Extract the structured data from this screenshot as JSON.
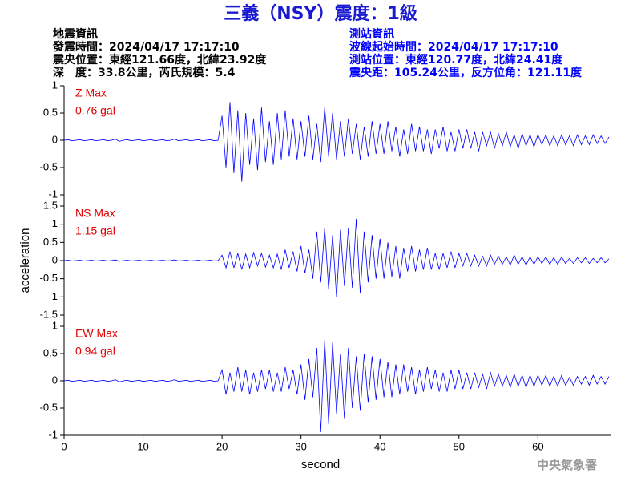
{
  "header": {
    "title": "三義（NSY）震度：1級",
    "event_info": [
      "地震資訊",
      "發震時間：2024/04/17 17:17:10",
      "震央位置：東經121.66度，北緯23.92度",
      "深　度：33.8公里，芮氏規模：5.4"
    ],
    "station_info": [
      "測站資訊",
      "波線起始時間：2024/04/17 17:17:10",
      "測站位置：東經120.77度，北緯24.41度",
      "震央距：105.24公里，反方位角：121.11度"
    ]
  },
  "footer": "中央氣象署",
  "chart_data": [
    {
      "type": "line",
      "annotation": [
        "Z Max",
        "0.76 gal"
      ],
      "color": "#0000ff",
      "xlim": [
        0,
        69.2
      ],
      "ylim": [
        -1,
        1
      ],
      "yticks": [
        1,
        0.5,
        0,
        -0.5,
        -1
      ],
      "x": [
        0,
        0.5,
        1,
        1.5,
        2,
        2.5,
        3,
        3.5,
        4,
        4.5,
        5,
        5.5,
        6,
        6.5,
        7,
        7.5,
        8,
        8.5,
        9,
        9.5,
        10,
        10.5,
        11,
        11.5,
        12,
        12.5,
        13,
        13.5,
        14,
        14.5,
        15,
        15.5,
        16,
        16.5,
        17,
        17.5,
        18,
        18.5,
        19,
        19.5,
        20,
        20.5,
        21,
        21.5,
        22,
        22.5,
        23,
        23.5,
        24,
        24.5,
        25,
        25.5,
        26,
        26.5,
        27,
        27.5,
        28,
        28.5,
        29,
        29.5,
        30,
        30.5,
        31,
        31.5,
        32,
        32.5,
        33,
        33.5,
        34,
        34.5,
        35,
        35.5,
        36,
        36.5,
        37,
        37.5,
        38,
        38.5,
        39,
        39.5,
        40,
        40.5,
        41,
        41.5,
        42,
        42.5,
        43,
        43.5,
        44,
        44.5,
        45,
        45.5,
        46,
        46.5,
        47,
        47.5,
        48,
        48.5,
        49,
        49.5,
        50,
        50.5,
        51,
        51.5,
        52,
        52.5,
        53,
        53.5,
        54,
        54.5,
        55,
        55.5,
        56,
        56.5,
        57,
        57.5,
        58,
        58.5,
        59,
        59.5,
        60,
        60.5,
        61,
        61.5,
        62,
        62.5,
        63,
        63.5,
        64,
        64.5,
        65,
        65.5,
        66,
        66.5,
        67,
        67.5,
        68,
        68.5,
        69
      ],
      "values": [
        0,
        0.01,
        -0.01,
        0,
        0.01,
        -0.01,
        0,
        0.01,
        -0.01,
        0,
        0.01,
        -0.01,
        0,
        0.02,
        -0.02,
        0,
        0.01,
        -0.01,
        0,
        0.01,
        -0.01,
        0,
        0.01,
        -0.01,
        0,
        0.01,
        -0.01,
        0,
        0.02,
        -0.01,
        0,
        0.01,
        -0.01,
        0,
        0.01,
        -0.01,
        0,
        0.01,
        -0.01,
        0,
        0.45,
        -0.5,
        0.7,
        -0.6,
        0.55,
        -0.76,
        0.5,
        -0.45,
        0.4,
        -0.55,
        0.6,
        -0.4,
        0.35,
        -0.45,
        0.5,
        -0.35,
        0.55,
        -0.3,
        0.4,
        -0.35,
        0.35,
        -0.3,
        0.45,
        -0.35,
        0.3,
        -0.4,
        0.6,
        -0.3,
        0.5,
        -0.35,
        0.35,
        -0.3,
        0.4,
        -0.25,
        0.3,
        -0.35,
        0.25,
        -0.3,
        0.35,
        -0.25,
        0.3,
        -0.25,
        0.35,
        -0.2,
        0.25,
        -0.3,
        0.2,
        -0.25,
        0.3,
        -0.2,
        0.25,
        -0.2,
        0.2,
        -0.25,
        0.2,
        -0.15,
        0.25,
        -0.2,
        0.15,
        -0.2,
        0.2,
        -0.15,
        0.2,
        -0.15,
        0.15,
        -0.2,
        0.15,
        -0.1,
        0.15,
        -0.15,
        0.12,
        -0.1,
        0.15,
        -0.12,
        0.1,
        -0.15,
        0.12,
        -0.1,
        0.1,
        -0.12,
        0.1,
        -0.08,
        0.1,
        -0.1,
        0.08,
        -0.1,
        0.1,
        -0.08,
        0.08,
        -0.1,
        0.1,
        -0.08,
        0.08,
        -0.08,
        0.1,
        -0.06,
        0.08,
        -0.06,
        0.06
      ]
    },
    {
      "type": "line",
      "annotation": [
        "NS Max",
        "1.15 gal"
      ],
      "color": "#0000ff",
      "ylabel": "acceleration",
      "xlim": [
        0,
        69.2
      ],
      "ylim": [
        -1.5,
        1.5
      ],
      "yticks": [
        1.5,
        1,
        0.5,
        0,
        -0.5,
        -1,
        -1.5
      ],
      "x": [
        0,
        0.5,
        1,
        1.5,
        2,
        2.5,
        3,
        3.5,
        4,
        4.5,
        5,
        5.5,
        6,
        6.5,
        7,
        7.5,
        8,
        8.5,
        9,
        9.5,
        10,
        10.5,
        11,
        11.5,
        12,
        12.5,
        13,
        13.5,
        14,
        14.5,
        15,
        15.5,
        16,
        16.5,
        17,
        17.5,
        18,
        18.5,
        19,
        19.5,
        20,
        20.5,
        21,
        21.5,
        22,
        22.5,
        23,
        23.5,
        24,
        24.5,
        25,
        25.5,
        26,
        26.5,
        27,
        27.5,
        28,
        28.5,
        29,
        29.5,
        30,
        30.5,
        31,
        31.5,
        32,
        32.5,
        33,
        33.5,
        34,
        34.5,
        35,
        35.5,
        36,
        36.5,
        37,
        37.5,
        38,
        38.5,
        39,
        39.5,
        40,
        40.5,
        41,
        41.5,
        42,
        42.5,
        43,
        43.5,
        44,
        44.5,
        45,
        45.5,
        46,
        46.5,
        47,
        47.5,
        48,
        48.5,
        49,
        49.5,
        50,
        50.5,
        51,
        51.5,
        52,
        52.5,
        53,
        53.5,
        54,
        54.5,
        55,
        55.5,
        56,
        56.5,
        57,
        57.5,
        58,
        58.5,
        59,
        59.5,
        60,
        60.5,
        61,
        61.5,
        62,
        62.5,
        63,
        63.5,
        64,
        64.5,
        65,
        65.5,
        66,
        66.5,
        67,
        67.5,
        68,
        68.5,
        69
      ],
      "values": [
        0,
        0.01,
        -0.01,
        0,
        0.01,
        -0.01,
        0,
        0.01,
        -0.01,
        0,
        0.01,
        -0.01,
        0,
        0.02,
        -0.02,
        0,
        0.01,
        -0.01,
        0,
        0.01,
        -0.01,
        0,
        0.01,
        -0.01,
        0,
        0.01,
        -0.01,
        0,
        0.02,
        -0.01,
        0,
        0.01,
        -0.01,
        0,
        0.01,
        -0.01,
        0,
        0.01,
        -0.01,
        0,
        0.15,
        -0.2,
        0.25,
        -0.2,
        0.2,
        -0.25,
        0.18,
        -0.2,
        0.22,
        -0.15,
        0.2,
        -0.18,
        0.15,
        -0.2,
        0.18,
        -0.25,
        0.3,
        -0.2,
        0.25,
        -0.3,
        0.4,
        -0.35,
        0.3,
        -0.5,
        0.8,
        -0.6,
        0.9,
        -0.8,
        0.7,
        -1.0,
        0.85,
        -0.7,
        0.9,
        -0.75,
        1.15,
        -0.9,
        0.8,
        -0.6,
        0.7,
        -0.5,
        0.6,
        -0.5,
        0.5,
        -0.45,
        0.4,
        -0.5,
        0.35,
        -0.3,
        0.4,
        -0.3,
        0.3,
        -0.25,
        0.35,
        -0.25,
        0.2,
        -0.25,
        0.2,
        -0.2,
        0.25,
        -0.2,
        0.2,
        -0.15,
        0.2,
        -0.15,
        0.15,
        -0.15,
        0.12,
        -0.15,
        0.15,
        -0.1,
        0.12,
        -0.1,
        0.1,
        -0.12,
        0.15,
        -0.1,
        0.1,
        -0.12,
        0.1,
        -0.1,
        0.1,
        -0.08,
        0.1,
        -0.1,
        0.08,
        -0.1,
        0.1,
        -0.08,
        0.06,
        -0.08,
        0.08,
        -0.06,
        0.08,
        -0.08,
        0.06,
        -0.06,
        0.08,
        -0.06,
        0.05
      ]
    },
    {
      "type": "line",
      "annotation": [
        "EW Max",
        "0.94 gal"
      ],
      "color": "#0000ff",
      "xlabel": "second",
      "xlim": [
        0,
        69.2
      ],
      "xticks": [
        0,
        10,
        20,
        30,
        40,
        50,
        60
      ],
      "ylim": [
        -1,
        1
      ],
      "yticks": [
        1,
        0.5,
        0,
        -0.5,
        -1
      ],
      "x": [
        0,
        0.5,
        1,
        1.5,
        2,
        2.5,
        3,
        3.5,
        4,
        4.5,
        5,
        5.5,
        6,
        6.5,
        7,
        7.5,
        8,
        8.5,
        9,
        9.5,
        10,
        10.5,
        11,
        11.5,
        12,
        12.5,
        13,
        13.5,
        14,
        14.5,
        15,
        15.5,
        16,
        16.5,
        17,
        17.5,
        18,
        18.5,
        19,
        19.5,
        20,
        20.5,
        21,
        21.5,
        22,
        22.5,
        23,
        23.5,
        24,
        24.5,
        25,
        25.5,
        26,
        26.5,
        27,
        27.5,
        28,
        28.5,
        29,
        29.5,
        30,
        30.5,
        31,
        31.5,
        32,
        32.5,
        33,
        33.5,
        34,
        34.5,
        35,
        35.5,
        36,
        36.5,
        37,
        37.5,
        38,
        38.5,
        39,
        39.5,
        40,
        40.5,
        41,
        41.5,
        42,
        42.5,
        43,
        43.5,
        44,
        44.5,
        45,
        45.5,
        46,
        46.5,
        47,
        47.5,
        48,
        48.5,
        49,
        49.5,
        50,
        50.5,
        51,
        51.5,
        52,
        52.5,
        53,
        53.5,
        54,
        54.5,
        55,
        55.5,
        56,
        56.5,
        57,
        57.5,
        58,
        58.5,
        59,
        59.5,
        60,
        60.5,
        61,
        61.5,
        62,
        62.5,
        63,
        63.5,
        64,
        64.5,
        65,
        65.5,
        66,
        66.5,
        67,
        67.5,
        68,
        68.5,
        69
      ],
      "values": [
        0,
        0.01,
        -0.01,
        0,
        0.01,
        -0.01,
        0,
        0.01,
        -0.01,
        0,
        0.01,
        -0.01,
        0,
        0.02,
        -0.02,
        0,
        0.01,
        -0.01,
        0,
        0.01,
        -0.01,
        0,
        0.01,
        -0.01,
        0,
        0.01,
        -0.01,
        0,
        0.02,
        -0.01,
        0,
        0.01,
        -0.01,
        0,
        0.01,
        -0.01,
        0,
        0.01,
        -0.01,
        0,
        0.2,
        -0.25,
        0.15,
        -0.2,
        0.25,
        -0.2,
        0.2,
        -0.25,
        0.15,
        -0.2,
        0.2,
        -0.15,
        0.2,
        -0.2,
        0.15,
        -0.2,
        0.25,
        -0.15,
        0.2,
        -0.25,
        0.3,
        -0.35,
        0.4,
        -0.3,
        0.6,
        -0.94,
        0.75,
        -0.8,
        0.7,
        -0.6,
        0.5,
        -0.7,
        0.6,
        -0.5,
        0.45,
        -0.55,
        0.5,
        -0.4,
        0.45,
        -0.35,
        0.4,
        -0.3,
        0.35,
        -0.3,
        0.3,
        -0.25,
        0.3,
        -0.2,
        0.25,
        -0.25,
        0.2,
        -0.2,
        0.25,
        -0.15,
        0.2,
        -0.2,
        0.15,
        -0.2,
        0.2,
        -0.15,
        0.2,
        -0.15,
        0.15,
        -0.15,
        0.15,
        -0.12,
        0.12,
        -0.15,
        0.15,
        -0.1,
        0.12,
        -0.1,
        0.1,
        -0.12,
        0.12,
        -0.1,
        0.1,
        -0.12,
        0.1,
        -0.1,
        0.1,
        -0.08,
        0.1,
        -0.1,
        0.08,
        -0.1,
        0.1,
        -0.08,
        0.06,
        -0.08,
        0.08,
        -0.06,
        0.08,
        -0.08,
        0.1,
        -0.06,
        0.08,
        -0.06,
        0.08
      ]
    }
  ]
}
